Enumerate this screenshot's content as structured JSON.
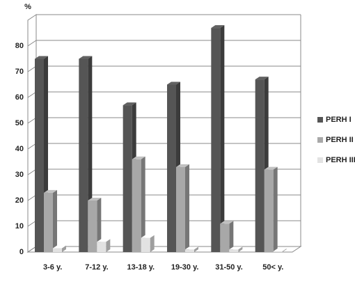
{
  "chart_data": {
    "type": "bar3d",
    "y_label": "%",
    "categories": [
      "3-6 y.",
      "7-12 y.",
      "13-18 y.",
      "19-30 y.",
      "31-50 y.",
      "50< y."
    ],
    "series": [
      {
        "name": "PERH I",
        "color": "#555555",
        "values": [
          75,
          75,
          57,
          65,
          87,
          67
        ]
      },
      {
        "name": "PERH II",
        "color": "#a8a8a8",
        "values": [
          23,
          20,
          36,
          33,
          11,
          32
        ]
      },
      {
        "name": "PERH  III",
        "color": "#e2e2e2",
        "values": [
          1.5,
          4,
          5.5,
          1,
          1,
          0.3
        ]
      }
    ],
    "ylim": [
      0,
      90
    ],
    "yticks": [
      0,
      10,
      20,
      30,
      40,
      50,
      60,
      70,
      80
    ],
    "grid": true,
    "legend": "right"
  }
}
